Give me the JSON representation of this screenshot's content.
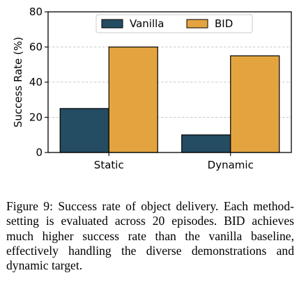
{
  "chart_data": {
    "type": "bar",
    "categories": [
      "Static",
      "Dynamic"
    ],
    "series": [
      {
        "name": "Vanilla",
        "values": [
          25,
          10
        ],
        "color": "#244c63"
      },
      {
        "name": "BID",
        "values": [
          60,
          55
        ],
        "color": "#e3a440"
      }
    ],
    "ylabel": "Success Rate (%)",
    "xlabel": "",
    "ylim": [
      0,
      80
    ],
    "yticks": [
      0,
      20,
      40,
      60,
      80
    ],
    "grid": "horizontal dashed",
    "legend_position": "top"
  },
  "caption": "Figure 9: Success rate of object delivery. Each method-setting is evaluated across 20 episodes. BID achieves much higher success rate than the vanilla baseline, effectively handling the diverse demonstrations and dynamic target."
}
